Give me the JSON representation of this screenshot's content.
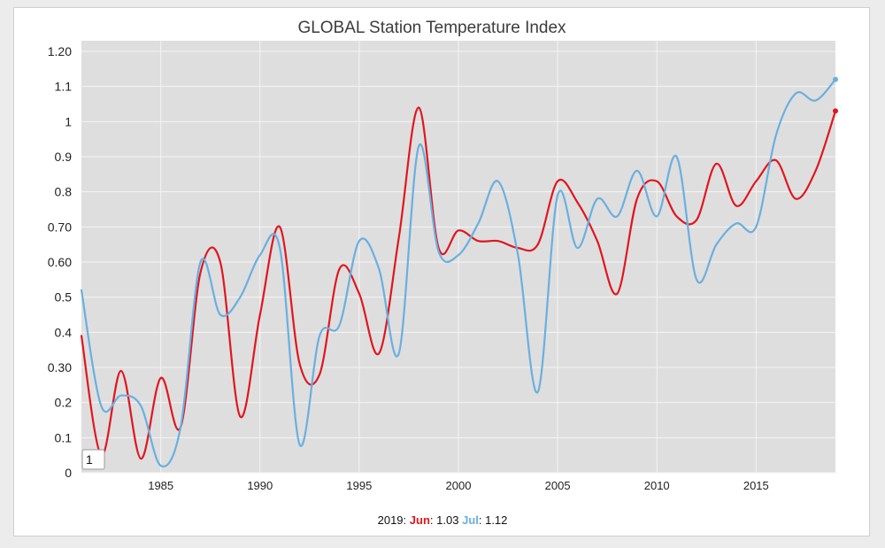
{
  "chart_data": {
    "type": "line",
    "title": "GLOBAL Station Temperature Index",
    "xlim": [
      1981,
      2019
    ],
    "ylim": [
      0,
      1.2
    ],
    "y_ticks": [
      {
        "value": 0,
        "label": "0"
      },
      {
        "value": 0.1,
        "label": "0.1"
      },
      {
        "value": 0.2,
        "label": "0.2"
      },
      {
        "value": 0.3,
        "label": "0.30"
      },
      {
        "value": 0.4,
        "label": "0.4"
      },
      {
        "value": 0.5,
        "label": "0.5"
      },
      {
        "value": 0.6,
        "label": "0.60"
      },
      {
        "value": 0.7,
        "label": "0.70"
      },
      {
        "value": 0.8,
        "label": "0.8"
      },
      {
        "value": 0.9,
        "label": "0.9"
      },
      {
        "value": 1.0,
        "label": "1"
      },
      {
        "value": 1.1,
        "label": "1.1"
      },
      {
        "value": 1.2,
        "label": "1.20"
      }
    ],
    "x_ticks": [
      1985,
      1990,
      1995,
      2000,
      2005,
      2010,
      2015
    ],
    "grid": true,
    "series": [
      {
        "name": "Jun",
        "color": "#e0161f",
        "x": [
          1981,
          1982,
          1983,
          1984,
          1985,
          1986,
          1987,
          1988,
          1989,
          1990,
          1991,
          1992,
          1993,
          1994,
          1995,
          1996,
          1997,
          1998,
          1999,
          2000,
          2001,
          2002,
          2003,
          2004,
          2005,
          2006,
          2007,
          2008,
          2009,
          2010,
          2011,
          2012,
          2013,
          2014,
          2015,
          2016,
          2017,
          2018,
          2019
        ],
        "values": [
          0.39,
          0.05,
          0.29,
          0.04,
          0.27,
          0.13,
          0.57,
          0.6,
          0.16,
          0.45,
          0.7,
          0.31,
          0.28,
          0.58,
          0.51,
          0.34,
          0.67,
          1.04,
          0.64,
          0.69,
          0.66,
          0.66,
          0.64,
          0.65,
          0.83,
          0.77,
          0.66,
          0.51,
          0.78,
          0.83,
          0.73,
          0.72,
          0.88,
          0.76,
          0.83,
          0.89,
          0.78,
          0.86,
          1.03
        ]
      },
      {
        "name": "Jul",
        "color": "#6aafe0",
        "x": [
          1981,
          1982,
          1983,
          1984,
          1985,
          1986,
          1987,
          1988,
          1989,
          1990,
          1991,
          1992,
          1993,
          1994,
          1995,
          1996,
          1997,
          1998,
          1999,
          2000,
          2001,
          2002,
          2003,
          2004,
          2005,
          2006,
          2007,
          2008,
          2009,
          2010,
          2011,
          2012,
          2013,
          2014,
          2015,
          2016,
          2017,
          2018,
          2019
        ],
        "values": [
          0.52,
          0.19,
          0.22,
          0.19,
          0.02,
          0.13,
          0.6,
          0.45,
          0.5,
          0.62,
          0.64,
          0.08,
          0.39,
          0.42,
          0.66,
          0.58,
          0.34,
          0.93,
          0.63,
          0.62,
          0.71,
          0.83,
          0.62,
          0.23,
          0.79,
          0.64,
          0.78,
          0.73,
          0.86,
          0.73,
          0.9,
          0.55,
          0.65,
          0.71,
          0.7,
          0.96,
          1.08,
          1.06,
          1.12
        ]
      }
    ]
  },
  "footer": {
    "year": "2019:",
    "jun_label": "Jun",
    "jun_value": ": 1.03",
    "jul_label": "Jul",
    "jul_value": ": 1.12"
  },
  "range_input_value": "1"
}
